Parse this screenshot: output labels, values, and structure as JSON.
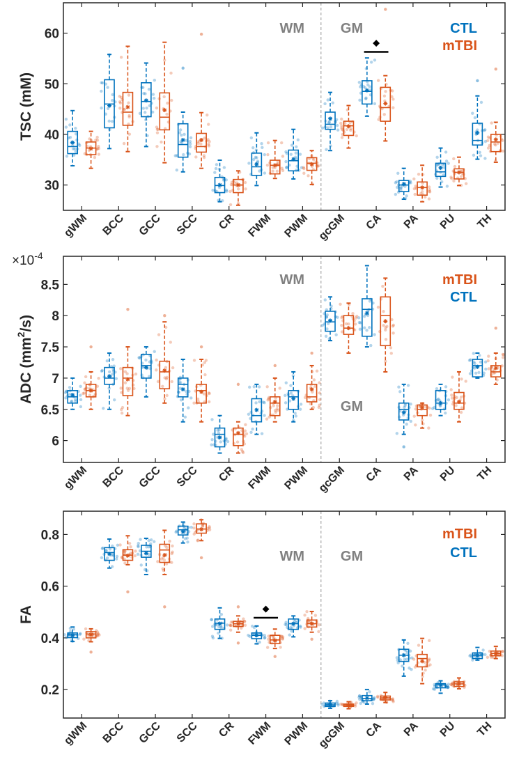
{
  "colors": {
    "CTL": "#0072BD",
    "mTBI": "#D95319",
    "region_label": "#808080",
    "axis": "#262626"
  },
  "stat_order": [
    "whisker_low",
    "q1",
    "median",
    "q3",
    "whisker_high",
    "mean"
  ],
  "chart_data": [
    {
      "type": "box",
      "ylabel": "TSC (mM)",
      "ylim": [
        25,
        66
      ],
      "yticks": [
        "30",
        "40",
        "50",
        "60"
      ],
      "categories": [
        "gWM",
        "BCC",
        "GCC",
        "SCC",
        "CR",
        "FWM",
        "PWM",
        "gcGM",
        "CA",
        "PA",
        "PU",
        "TH"
      ],
      "divider_between": [
        "PWM",
        "gcGM"
      ],
      "region_labels": [
        "WM",
        "GM"
      ],
      "legend": [
        "CTL",
        "mTBI"
      ],
      "significance": [
        {
          "category": "CA",
          "symbol": "◆",
          "bar_y": 56.3,
          "symbol_y": 58.2
        }
      ],
      "series": [
        {
          "name": "CTL",
          "boxes": [
            [
              33.8,
              36.2,
              37.6,
              40.6,
              44.7,
              38.4
            ],
            [
              37.2,
              41.3,
              46.0,
              50.8,
              55.8,
              45.7
            ],
            [
              37.6,
              43.5,
              46.5,
              50.2,
              54.1,
              46.7
            ],
            [
              32.6,
              35.5,
              38.0,
              42.1,
              44.4,
              38.9
            ],
            [
              26.7,
              28.5,
              29.9,
              31.5,
              34.9,
              30.0
            ],
            [
              29.9,
              31.9,
              33.6,
              36.3,
              40.3,
              34.1
            ],
            [
              31.2,
              32.8,
              34.8,
              36.9,
              41.0,
              35.1
            ],
            [
              36.8,
              41.0,
              42.0,
              44.4,
              48.3,
              43.1
            ],
            [
              43.6,
              46.0,
              48.5,
              50.6,
              55.1,
              48.7
            ],
            [
              27.2,
              28.7,
              30.0,
              30.9,
              33.3,
              30.2
            ],
            [
              29.6,
              31.7,
              32.6,
              34.3,
              37.3,
              33.4
            ],
            [
              35.1,
              37.9,
              38.8,
              42.2,
              47.6,
              40.3
            ]
          ],
          "outliers": [
            {
              "category": "SCC",
              "value": 53.1
            },
            {
              "category": "TH",
              "value": 50.6
            }
          ]
        },
        {
          "name": "mTBI",
          "boxes": [
            [
              33.3,
              36.0,
              37.3,
              38.5,
              40.6,
              37.2
            ],
            [
              36.6,
              41.8,
              44.4,
              48.3,
              57.4,
              45.4
            ],
            [
              34.4,
              40.9,
              43.4,
              48.2,
              58.2,
              44.8
            ],
            [
              33.3,
              36.5,
              37.6,
              40.2,
              44.3,
              38.9
            ],
            [
              26.0,
              28.5,
              30.0,
              31.1,
              32.8,
              30.0
            ],
            [
              31.3,
              32.2,
              33.9,
              34.9,
              38.8,
              33.9
            ],
            [
              30.1,
              32.9,
              34.3,
              35.4,
              36.8,
              34.1
            ],
            [
              37.3,
              39.8,
              41.7,
              42.6,
              45.7,
              41.6
            ],
            [
              38.7,
              42.6,
              45.3,
              49.3,
              51.6,
              46.1
            ],
            [
              26.7,
              28.0,
              29.5,
              30.6,
              33.9,
              29.5
            ],
            [
              29.9,
              31.2,
              32.5,
              33.2,
              35.5,
              32.5
            ],
            [
              34.5,
              36.6,
              38.5,
              40.0,
              42.4,
              39.0
            ]
          ],
          "outliers": [
            {
              "category": "SCC",
              "value": 59.8
            },
            {
              "category": "CA",
              "value": 64.7
            },
            {
              "category": "TH",
              "value": 52.9
            }
          ]
        }
      ]
    },
    {
      "type": "box",
      "ylabel_parts": [
        "ADC (mm",
        "2",
        "/s)"
      ],
      "exponent_label": [
        "×10",
        "-4"
      ],
      "ylim": [
        5.65,
        8.95
      ],
      "yticks": [
        "6",
        "6.5",
        "7",
        "7.5",
        "8",
        "8.5"
      ],
      "categories": [
        "gWM",
        "BCC",
        "GCC",
        "SCC",
        "CR",
        "FWM",
        "PWM",
        "gcGM",
        "CA",
        "PA",
        "PU",
        "TH"
      ],
      "divider_between": [
        "PWM",
        "gcGM"
      ],
      "region_labels": [
        "WM",
        "GM"
      ],
      "legend": [
        "mTBI",
        "CTL"
      ],
      "series": [
        {
          "name": "CTL",
          "boxes": [
            [
              6.5,
              6.6,
              6.7,
              6.8,
              7.0,
              6.73
            ],
            [
              6.5,
              6.9,
              7.0,
              7.17,
              7.4,
              7.03
            ],
            [
              6.7,
              7.0,
              7.2,
              7.38,
              7.5,
              7.17
            ],
            [
              6.3,
              6.7,
              6.9,
              7.0,
              7.3,
              6.82
            ],
            [
              5.8,
              5.9,
              6.1,
              6.2,
              6.4,
              6.05
            ],
            [
              6.1,
              6.3,
              6.4,
              6.67,
              6.9,
              6.49
            ],
            [
              6.3,
              6.5,
              6.7,
              6.8,
              7.1,
              6.67
            ],
            [
              7.6,
              7.75,
              7.9,
              8.07,
              8.3,
              7.92
            ],
            [
              7.5,
              7.67,
              8.1,
              8.27,
              8.8,
              8.04
            ],
            [
              6.1,
              6.33,
              6.5,
              6.6,
              6.9,
              6.45
            ],
            [
              6.4,
              6.5,
              6.6,
              6.8,
              6.9,
              6.6
            ],
            [
              7.0,
              7.02,
              7.2,
              7.3,
              7.4,
              7.18
            ]
          ],
          "outliers": [
            {
              "category": "PA",
              "value": 5.9
            }
          ]
        },
        {
          "name": "mTBI",
          "boxes": [
            [
              6.5,
              6.7,
              6.8,
              6.9,
              7.1,
              6.8
            ],
            [
              6.4,
              6.72,
              7.0,
              7.17,
              7.5,
              6.98
            ],
            [
              6.6,
              6.83,
              7.1,
              7.27,
              7.9,
              7.12
            ],
            [
              6.3,
              6.6,
              6.8,
              6.9,
              7.3,
              6.78
            ],
            [
              5.8,
              5.92,
              6.1,
              6.2,
              6.3,
              6.12
            ],
            [
              6.3,
              6.4,
              6.6,
              6.7,
              7.0,
              6.62
            ],
            [
              6.5,
              6.62,
              6.7,
              6.9,
              7.2,
              6.82
            ],
            [
              7.4,
              7.7,
              7.8,
              8.0,
              8.2,
              7.8
            ],
            [
              7.1,
              7.52,
              8.0,
              8.3,
              8.6,
              7.91
            ],
            [
              6.2,
              6.4,
              6.5,
              6.57,
              6.6,
              6.53
            ],
            [
              6.3,
              6.5,
              6.6,
              6.77,
              7.1,
              6.62
            ],
            [
              6.9,
              7.02,
              7.1,
              7.2,
              7.4,
              7.16
            ]
          ],
          "outliers": [
            {
              "category": "gWM",
              "value": 7.5
            },
            {
              "category": "BCC",
              "value": 8.1
            },
            {
              "category": "GCC",
              "value": 8.0
            },
            {
              "category": "SCC",
              "value": 7.5
            },
            {
              "category": "CR",
              "value": 6.9
            },
            {
              "category": "FWM",
              "value": 7.2
            },
            {
              "category": "PWM",
              "value": 7.4
            },
            {
              "category": "TH",
              "value": 7.8
            }
          ]
        }
      ]
    },
    {
      "type": "box",
      "ylabel": "FA",
      "ylim": [
        0.09,
        0.89
      ],
      "yticks": [
        "0.2",
        "0.4",
        "0.6",
        "0.8"
      ],
      "categories": [
        "gWM",
        "BCC",
        "GCC",
        "SCC",
        "CR",
        "FWM",
        "PWM",
        "gcGM",
        "CA",
        "PA",
        "PU",
        "TH"
      ],
      "divider_between": [
        "PWM",
        "gcGM"
      ],
      "region_labels": [
        "WM",
        "GM"
      ],
      "legend": [
        "mTBI",
        "CTL"
      ],
      "significance": [
        {
          "category": "FWM",
          "symbol": "◆",
          "bar_y": 0.478,
          "symbol_y": 0.516
        }
      ],
      "series": [
        {
          "name": "CTL",
          "boxes": [
            [
              0.386,
              0.401,
              0.412,
              0.419,
              0.442,
              0.41
            ],
            [
              0.67,
              0.7,
              0.73,
              0.749,
              0.782,
              0.725
            ],
            [
              0.645,
              0.712,
              0.735,
              0.758,
              0.785,
              0.727
            ],
            [
              0.767,
              0.798,
              0.818,
              0.832,
              0.848,
              0.81
            ],
            [
              0.398,
              0.433,
              0.457,
              0.473,
              0.516,
              0.455
            ],
            [
              0.377,
              0.397,
              0.41,
              0.419,
              0.446,
              0.41
            ],
            [
              0.404,
              0.433,
              0.455,
              0.473,
              0.485,
              0.455
            ],
            [
              0.128,
              0.135,
              0.141,
              0.148,
              0.157,
              0.142
            ],
            [
              0.144,
              0.157,
              0.166,
              0.177,
              0.2,
              0.167
            ],
            [
              0.252,
              0.309,
              0.333,
              0.356,
              0.392,
              0.333
            ],
            [
              0.186,
              0.207,
              0.218,
              0.223,
              0.234,
              0.218
            ],
            [
              0.314,
              0.32,
              0.333,
              0.342,
              0.363,
              0.333
            ]
          ],
          "outliers": []
        },
        {
          "name": "mTBI",
          "boxes": [
            [
              0.385,
              0.4,
              0.415,
              0.424,
              0.435,
              0.413
            ],
            [
              0.683,
              0.7,
              0.72,
              0.741,
              0.795,
              0.718
            ],
            [
              0.645,
              0.692,
              0.74,
              0.762,
              0.816,
              0.72
            ],
            [
              0.776,
              0.805,
              0.821,
              0.841,
              0.857,
              0.82
            ],
            [
              0.422,
              0.444,
              0.455,
              0.464,
              0.485,
              0.455
            ],
            [
              0.359,
              0.378,
              0.392,
              0.41,
              0.434,
              0.39
            ],
            [
              0.422,
              0.442,
              0.455,
              0.469,
              0.502,
              0.455
            ],
            [
              0.126,
              0.135,
              0.14,
              0.144,
              0.153,
              0.14
            ],
            [
              0.15,
              0.16,
              0.168,
              0.175,
              0.189,
              0.17
            ],
            [
              0.223,
              0.288,
              0.32,
              0.336,
              0.398,
              0.31
            ],
            [
              0.203,
              0.212,
              0.222,
              0.23,
              0.245,
              0.222
            ],
            [
              0.32,
              0.331,
              0.34,
              0.349,
              0.367,
              0.34
            ]
          ],
          "outliers": [
            {
              "category": "gWM",
              "value": 0.345
            },
            {
              "category": "BCC",
              "value": 0.578
            },
            {
              "category": "GCC",
              "value": 0.52
            },
            {
              "category": "SCC",
              "value": 0.71
            },
            {
              "category": "CR",
              "value": 0.52
            },
            {
              "category": "CR",
              "value": 0.38
            },
            {
              "category": "FWM",
              "value": 0.328
            },
            {
              "category": "PWM",
              "value": 0.395
            }
          ]
        }
      ]
    }
  ]
}
